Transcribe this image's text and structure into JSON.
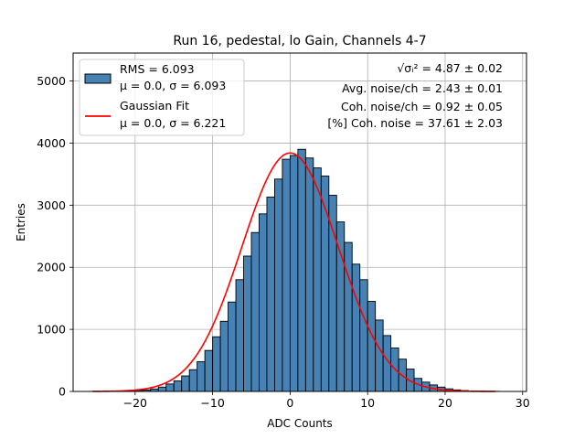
{
  "chart_data": {
    "type": "histogram",
    "title": "Run 16, pedestal, lo Gain, Channels 4-7",
    "xlabel": "ADC Counts",
    "ylabel": "Entries",
    "xlim": [
      -28,
      30.5
    ],
    "ylim": [
      0,
      5450
    ],
    "grid": true,
    "xticks": [
      -20,
      -10,
      0,
      10,
      20,
      30
    ],
    "xtick_labels": [
      "−20",
      "−10",
      "0",
      "10",
      "20",
      "30"
    ],
    "yticks": [
      0,
      1000,
      2000,
      3000,
      4000,
      5000
    ],
    "ytick_labels": [
      "0",
      "1000",
      "2000",
      "3000",
      "4000",
      "5000"
    ],
    "bar_color": "#4682b4",
    "bar_edge_color": "#000000",
    "fit_color": "#ff0000",
    "bin_width": 1,
    "bin_left_edges": [
      -26,
      -25,
      -24,
      -23,
      -22,
      -21,
      -20,
      -19,
      -18,
      -17,
      -16,
      -15,
      -14,
      -13,
      -12,
      -11,
      -10,
      -9,
      -8,
      -7,
      -6,
      -5,
      -4,
      -3,
      -2,
      -1,
      0,
      1,
      2,
      3,
      4,
      5,
      6,
      7,
      8,
      9,
      10,
      11,
      12,
      13,
      14,
      15,
      16,
      17,
      18,
      19,
      20,
      21,
      22,
      23,
      24,
      25,
      26
    ],
    "bin_counts": [
      1,
      1,
      2,
      3,
      5,
      8,
      14,
      23,
      40,
      70,
      120,
      170,
      250,
      350,
      480,
      660,
      880,
      1130,
      1440,
      1800,
      2180,
      2560,
      2860,
      3130,
      3420,
      3740,
      3800,
      3900,
      3760,
      3600,
      3470,
      3160,
      2730,
      2400,
      2050,
      1800,
      1450,
      1150,
      900,
      700,
      520,
      360,
      210,
      150,
      105,
      70,
      42,
      25,
      14,
      8,
      5,
      3,
      2
    ],
    "fit": {
      "type": "gaussian",
      "mu": 0.0,
      "sigma": 6.221,
      "amplitude": 3840,
      "x_range": [
        -25.5,
        26.5
      ]
    },
    "legend": {
      "position": "upper-left",
      "entries": [
        {
          "kind": "patch",
          "lines": [
            "RMS = 6.093",
            "μ = 0.0, σ = 6.093"
          ]
        },
        {
          "kind": "line",
          "lines": [
            "Gaussian Fit",
            "μ = 0.0, σ = 6.221"
          ]
        }
      ]
    },
    "annotations": [
      {
        "label": "√σᵢ²",
        "value": "= 4.87 ± 0.02"
      },
      {
        "label": "Avg. noise/ch",
        "value": "= 2.43 ± 0.01"
      },
      {
        "label": "Coh. noise/ch",
        "value": "= 0.92 ± 0.05"
      },
      {
        "label": "[%] Coh. noise",
        "value": "= 37.61 ± 2.03"
      }
    ]
  }
}
